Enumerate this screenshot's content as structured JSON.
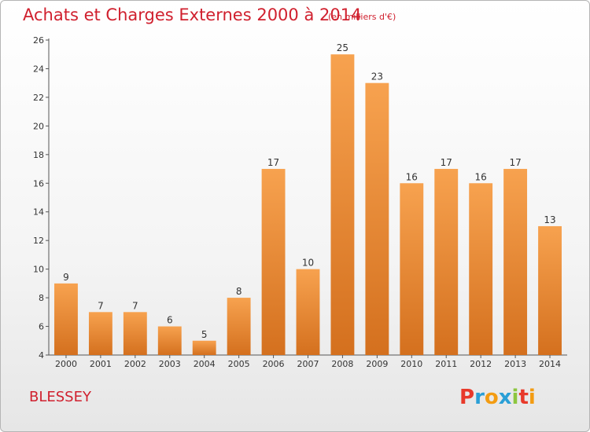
{
  "header": {
    "title": "Achats et Charges Externes 2000 à 2014",
    "subtitle": "(en milliers d'€)"
  },
  "footer": {
    "commune": "BLESSEY",
    "logo_text": "Proxiti",
    "logo_colors": [
      "#e8392a",
      "#2a9fd6",
      "#f39c12",
      "#2a9fd6",
      "#8cc63f",
      "#e8392a",
      "#f39c12"
    ]
  },
  "colors": {
    "title": "#d0202e",
    "bar_top": "#f7a24f",
    "bar_bottom": "#d4701e",
    "axis": "#555555"
  },
  "chart_data": {
    "type": "bar",
    "categories": [
      "2000",
      "2001",
      "2002",
      "2003",
      "2004",
      "2005",
      "2006",
      "2007",
      "2008",
      "2009",
      "2010",
      "2011",
      "2012",
      "2013",
      "2014"
    ],
    "values": [
      9,
      7,
      7,
      6,
      5,
      8,
      17,
      10,
      25,
      23,
      16,
      17,
      16,
      17,
      13
    ],
    "title": "Achats et Charges Externes 2000 à 2014",
    "ylim": [
      4,
      26
    ],
    "yticks": [
      4,
      6,
      8,
      10,
      12,
      14,
      16,
      18,
      20,
      22,
      24,
      26
    ],
    "grid": false,
    "data_labels": true
  }
}
